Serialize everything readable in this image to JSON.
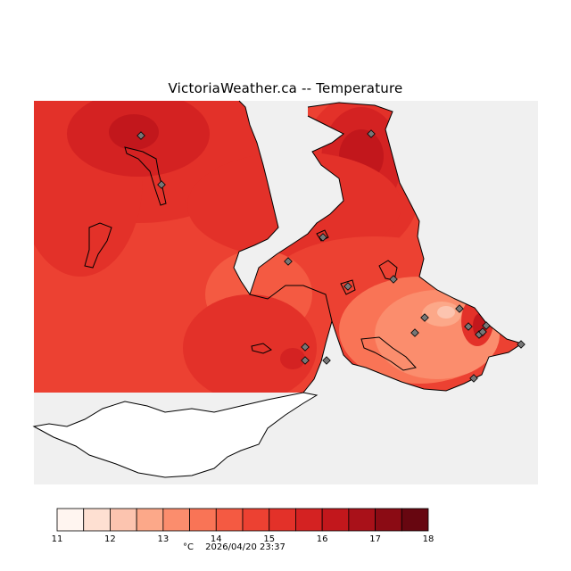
{
  "title": "VictoriaWeather.ca -- Temperature",
  "legend": {
    "unit": "°C",
    "min": 11,
    "max": 18,
    "step": 0.5,
    "tick_labels": [
      "11",
      "12",
      "13",
      "14",
      "15",
      "16",
      "17",
      "18"
    ],
    "colors": [
      "#fff5f0",
      "#fee0d2",
      "#fcc4af",
      "#fca889",
      "#fb8d6d",
      "#f97456",
      "#f45a42",
      "#ec4132",
      "#e33129",
      "#d42222",
      "#c2171c",
      "#a91119",
      "#8b0b14",
      "#670610"
    ]
  },
  "timestamp": "2026/04/20 23:37",
  "map_colors": {
    "ocean": "#f0f0f0",
    "outside": "#ffffff",
    "coast": "#000000",
    "station": "#777777"
  },
  "stations_count": 19
}
